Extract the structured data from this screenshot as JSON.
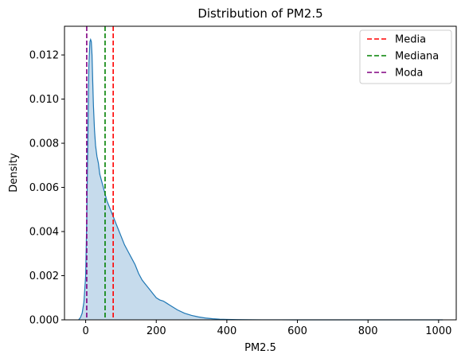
{
  "chart_data": {
    "type": "area",
    "title": "Distribution of PM2.5",
    "xlabel": "PM2.5",
    "ylabel": "Density",
    "xlim": [
      -60,
      1050
    ],
    "ylim": [
      0,
      0.0133
    ],
    "xticks": [
      0,
      200,
      400,
      600,
      800,
      1000
    ],
    "yticks": [
      0.0,
      0.002,
      0.004,
      0.006,
      0.008,
      0.01,
      0.012
    ],
    "ytick_labels": [
      "0.000",
      "0.002",
      "0.004",
      "0.006",
      "0.008",
      "0.010",
      "0.012"
    ],
    "grid": false,
    "legend_position": "top-right",
    "density_color": "#1f77b4",
    "fill_color": "#c6dbec",
    "series": [
      {
        "x": [
          -20,
          -15,
          -10,
          -5,
          0,
          3,
          6,
          9,
          12,
          14,
          16,
          18,
          20,
          22,
          25,
          28,
          32,
          36,
          40,
          45,
          50,
          55,
          60,
          65,
          70,
          75,
          80,
          85,
          90,
          95,
          100,
          110,
          120,
          130,
          140,
          150,
          160,
          170,
          180,
          190,
          200,
          210,
          220,
          230,
          240,
          250,
          260,
          280,
          300,
          320,
          340,
          360,
          380,
          400,
          430,
          460,
          500,
          550,
          600,
          700,
          800,
          900,
          1000,
          1012
        ],
        "y": [
          0.0,
          0.0001,
          0.0003,
          0.0008,
          0.002,
          0.0045,
          0.008,
          0.0115,
          0.0126,
          0.0127,
          0.0126,
          0.012,
          0.0108,
          0.0097,
          0.0086,
          0.0079,
          0.0074,
          0.0071,
          0.0066,
          0.0063,
          0.006,
          0.0057,
          0.0054,
          0.0052,
          0.005,
          0.0048,
          0.0046,
          0.0044,
          0.0042,
          0.004,
          0.0038,
          0.0034,
          0.0031,
          0.0028,
          0.0025,
          0.0021,
          0.0018,
          0.0016,
          0.0014,
          0.0012,
          0.001,
          0.0009,
          0.00085,
          0.00075,
          0.00065,
          0.00055,
          0.00045,
          0.0003,
          0.0002,
          0.00013,
          8e-05,
          5e-05,
          3e-05,
          2e-05,
          1e-05,
          6e-06,
          3e-06,
          2e-06,
          1e-06,
          5e-07,
          3e-07,
          2e-07,
          1e-07,
          0.0
        ]
      }
    ],
    "vlines": [
      {
        "name": "Media",
        "x": 78,
        "color": "#ff0000"
      },
      {
        "name": "Mediana",
        "x": 55,
        "color": "#008000"
      },
      {
        "name": "Moda",
        "x": 3,
        "color": "#800080"
      }
    ]
  }
}
